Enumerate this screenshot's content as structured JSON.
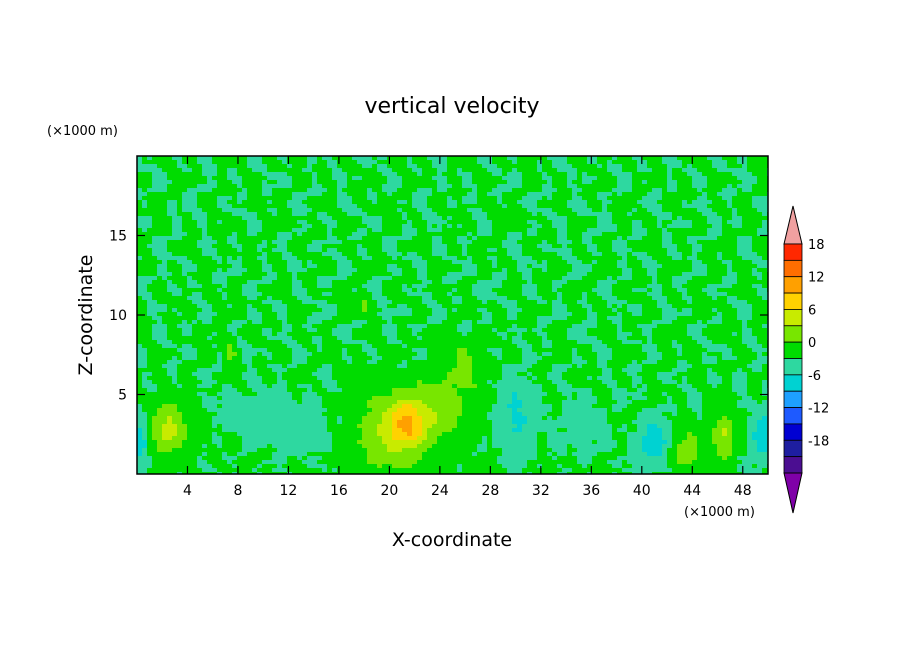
{
  "chart_data": {
    "type": "heatmap",
    "title": "vertical velocity",
    "xlabel": "X-coordinate",
    "ylabel": "Z-coordinate",
    "x_units": "(×1000 m)",
    "y_units": "(×1000 m)",
    "xlim": [
      0,
      50
    ],
    "ylim": [
      0,
      20
    ],
    "x_ticks": [
      4,
      8,
      12,
      16,
      20,
      24,
      28,
      32,
      36,
      40,
      44,
      48
    ],
    "y_ticks": [
      5,
      10,
      15
    ],
    "colorbar": {
      "levels": [
        -21,
        -18,
        -15,
        -12,
        -9,
        -6,
        -3,
        0,
        3,
        6,
        9,
        12,
        15,
        18,
        21
      ],
      "tick_labels": [
        "18",
        "12",
        "6",
        "0",
        "-6",
        "-12",
        "-18"
      ],
      "tick_values": [
        18,
        12,
        6,
        0,
        -6,
        -12,
        -18
      ],
      "colors": [
        "#7f00a8",
        "#4b0e91",
        "#1e1ea0",
        "#0000d2",
        "#1e5aff",
        "#1ea0ff",
        "#00d2d2",
        "#2ed8a0",
        "#00dc00",
        "#78e600",
        "#c8eb00",
        "#ffd200",
        "#ffa000",
        "#ff6e00",
        "#ff2800",
        "#f0a0a0"
      ],
      "extend": "both"
    },
    "features": [
      {
        "x": 2.5,
        "z": 2.8,
        "sx": 1.4,
        "sz": 1.6,
        "w": 7
      },
      {
        "x": 21.5,
        "z": 3.2,
        "sx": 1.6,
        "sz": 1.5,
        "w": 9
      },
      {
        "x": 20.0,
        "z": 2.5,
        "sx": 3.0,
        "sz": 2.8,
        "w": 5
      },
      {
        "x": 24.5,
        "z": 4.5,
        "sx": 2.2,
        "sz": 2.2,
        "w": 4
      },
      {
        "x": 26.0,
        "z": 7.0,
        "sx": 1.2,
        "sz": 1.4,
        "w": 3
      },
      {
        "x": 46.5,
        "z": 2.4,
        "sx": 0.9,
        "sz": 1.4,
        "w": 6
      },
      {
        "x": 43.5,
        "z": 1.5,
        "sx": 1.2,
        "sz": 1.2,
        "w": 5
      },
      {
        "x": 7.5,
        "z": 7.5,
        "sx": 0.5,
        "sz": 1.2,
        "w": 3
      },
      {
        "x": 18.0,
        "z": 10.5,
        "sx": 0.6,
        "sz": 0.8,
        "w": 3
      },
      {
        "x": 41.0,
        "z": 2.0,
        "sx": 1.2,
        "sz": 1.3,
        "w": -6
      },
      {
        "x": 49.5,
        "z": 2.5,
        "sx": 0.8,
        "sz": 1.5,
        "w": -5
      },
      {
        "x": 30.0,
        "z": 3.5,
        "sx": 1.2,
        "sz": 2.2,
        "w": -4
      },
      {
        "x": 13.0,
        "z": 3.0,
        "sx": 2.5,
        "sz": 1.5,
        "w": -2
      },
      {
        "x": 0.3,
        "z": 2.0,
        "sx": 0.6,
        "sz": 1.5,
        "w": -5
      },
      {
        "x": 35.0,
        "z": 3.0,
        "sx": 2.0,
        "sz": 1.5,
        "w": -1.5
      },
      {
        "x": 9.0,
        "z": 4.0,
        "sx": 2.5,
        "sz": 1.2,
        "w": -1.5
      }
    ]
  }
}
